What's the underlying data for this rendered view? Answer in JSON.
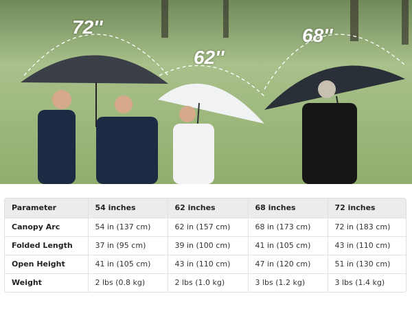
{
  "photo": {
    "labels": [
      "72''",
      "62''",
      "68''"
    ]
  },
  "table": {
    "headers": [
      "Parameter",
      "54 inches",
      "62 inches",
      "68 inches",
      "72 inches"
    ],
    "rows": [
      [
        "Canopy Arc",
        "54 in (137 cm)",
        "62 in (157 cm)",
        "68 in (173 cm)",
        "72 in (183 cm)"
      ],
      [
        "Folded Length",
        "37 in (95 cm)",
        "39 in (100 cm)",
        "41 in (105 cm)",
        "43 in (110 cm)"
      ],
      [
        "Open Height",
        "41 in (105 cm)",
        "43 in (110 cm)",
        "47 in (120 cm)",
        "51 in (130 cm)"
      ],
      [
        "Weight",
        "2 lbs (0.8 kg)",
        "2 lbs (1.0 kg)",
        "3 lbs (1.2 kg)",
        "3 lbs (1.4 kg)"
      ]
    ]
  }
}
